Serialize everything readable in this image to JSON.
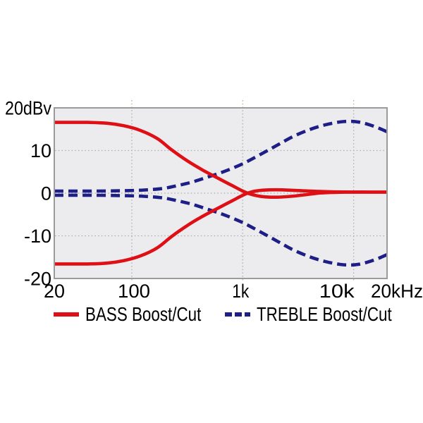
{
  "figure": {
    "y_axis_unit_label": "20dBv"
  },
  "colors": {
    "bass_red": "#de1016",
    "treble_blue": "#1e1e87",
    "plot_background": "#ececee",
    "gridline": "#b0b0b0",
    "plot_border": "#9b9b9b",
    "label_text": "#000000",
    "page_background": "#ffffff"
  },
  "axes": {
    "x": {
      "scale": "log",
      "min_hz": 20,
      "max_hz": 20000,
      "ticks": [
        {
          "hz": 20,
          "label": "20"
        },
        {
          "hz": 100,
          "label": "100"
        },
        {
          "hz": 1000,
          "label": "1k"
        },
        {
          "hz": 10000,
          "label": "10k"
        },
        {
          "hz": 20000,
          "label": "20kHz"
        }
      ],
      "gridlines_hz": [
        100,
        1000,
        10000
      ]
    },
    "y": {
      "min_db": -20,
      "max_db": 20,
      "ticks": [
        {
          "db": 20,
          "label": "20dBv"
        },
        {
          "db": 10,
          "label": "10"
        },
        {
          "db": 0,
          "label": "0"
        },
        {
          "db": -10,
          "label": "-10"
        },
        {
          "db": -20,
          "label": "-20"
        }
      ],
      "gridlines_db": [
        10,
        0,
        -10
      ]
    }
  },
  "legend": {
    "items": [
      {
        "label": "BASS Boost/Cut",
        "style": "solid",
        "color": "#de1016"
      },
      {
        "label": "TREBLE Boost/Cut",
        "style": "dashed",
        "color": "#1e1e87"
      }
    ]
  },
  "chart_data": {
    "type": "line",
    "title": "",
    "xlabel": "",
    "ylabel": "20dBv",
    "x_scale": "log",
    "xlim_hz": [
      20,
      20000
    ],
    "ylim_db": [
      -20,
      20
    ],
    "grid": true,
    "legend_position": "bottom",
    "series": [
      {
        "id": "treble-boost",
        "name": "TREBLE Boost",
        "legend_label": "TREBLE Boost/Cut",
        "line": "dashed",
        "color": "#1e1e87",
        "points_hz_db": [
          [
            20,
            0.5
          ],
          [
            50,
            0.5
          ],
          [
            90,
            0.6
          ],
          [
            130,
            0.75
          ],
          [
            190,
            1.1
          ],
          [
            260,
            1.8
          ],
          [
            360,
            2.7
          ],
          [
            500,
            3.9
          ],
          [
            700,
            5.2
          ],
          [
            1000,
            6.9
          ],
          [
            1400,
            8.9
          ],
          [
            2000,
            11.1
          ],
          [
            2800,
            13.2
          ],
          [
            4000,
            14.9
          ],
          [
            5500,
            16.0
          ],
          [
            7500,
            16.7
          ],
          [
            9500,
            16.85
          ],
          [
            11500,
            16.6
          ],
          [
            14000,
            16.0
          ],
          [
            17000,
            15.2
          ],
          [
            20000,
            14.4
          ]
        ]
      },
      {
        "id": "treble-cut",
        "name": "TREBLE Cut",
        "legend_label": "TREBLE Boost/Cut",
        "line": "dashed",
        "color": "#1e1e87",
        "points_hz_db": [
          [
            20,
            -0.5
          ],
          [
            50,
            -0.5
          ],
          [
            90,
            -0.6
          ],
          [
            130,
            -0.75
          ],
          [
            190,
            -1.1
          ],
          [
            260,
            -1.8
          ],
          [
            360,
            -2.7
          ],
          [
            500,
            -3.9
          ],
          [
            700,
            -5.2
          ],
          [
            1000,
            -6.9
          ],
          [
            1400,
            -8.9
          ],
          [
            2000,
            -11.1
          ],
          [
            2800,
            -13.2
          ],
          [
            4000,
            -14.9
          ],
          [
            5500,
            -16.0
          ],
          [
            7500,
            -16.7
          ],
          [
            9500,
            -16.85
          ],
          [
            11500,
            -16.6
          ],
          [
            14000,
            -16.0
          ],
          [
            17000,
            -15.2
          ],
          [
            20000,
            -14.4
          ]
        ]
      },
      {
        "id": "bass-boost",
        "name": "BASS Boost",
        "legend_label": "BASS Boost/Cut",
        "line": "solid",
        "color": "#de1016",
        "points_hz_db": [
          [
            20,
            16.6
          ],
          [
            40,
            16.6
          ],
          [
            60,
            16.4
          ],
          [
            85,
            15.8
          ],
          [
            120,
            14.7
          ],
          [
            170,
            12.8
          ],
          [
            230,
            10.1
          ],
          [
            320,
            7.5
          ],
          [
            430,
            5.5
          ],
          [
            600,
            3.5
          ],
          [
            800,
            1.8
          ],
          [
            1000,
            0.5
          ],
          [
            1200,
            -0.3
          ],
          [
            1500,
            -0.8
          ],
          [
            2000,
            -0.95
          ],
          [
            2700,
            -0.75
          ],
          [
            3600,
            -0.4
          ],
          [
            5000,
            0.05
          ],
          [
            7000,
            0.2
          ],
          [
            10000,
            0.25
          ],
          [
            14000,
            0.25
          ],
          [
            20000,
            0.25
          ]
        ]
      },
      {
        "id": "bass-cut",
        "name": "BASS Cut",
        "legend_label": "BASS Boost/Cut",
        "line": "solid",
        "color": "#de1016",
        "points_hz_db": [
          [
            20,
            -16.6
          ],
          [
            40,
            -16.6
          ],
          [
            60,
            -16.4
          ],
          [
            85,
            -15.8
          ],
          [
            120,
            -14.7
          ],
          [
            170,
            -12.8
          ],
          [
            230,
            -10.1
          ],
          [
            320,
            -7.5
          ],
          [
            430,
            -5.5
          ],
          [
            600,
            -3.5
          ],
          [
            800,
            -1.8
          ],
          [
            1000,
            -0.5
          ],
          [
            1200,
            0.3
          ],
          [
            1500,
            0.7
          ],
          [
            2000,
            0.8
          ],
          [
            2700,
            0.7
          ],
          [
            3600,
            0.55
          ],
          [
            5000,
            0.4
          ],
          [
            7000,
            0.3
          ],
          [
            10000,
            0.27
          ],
          [
            14000,
            0.25
          ],
          [
            20000,
            0.25
          ]
        ]
      }
    ]
  }
}
